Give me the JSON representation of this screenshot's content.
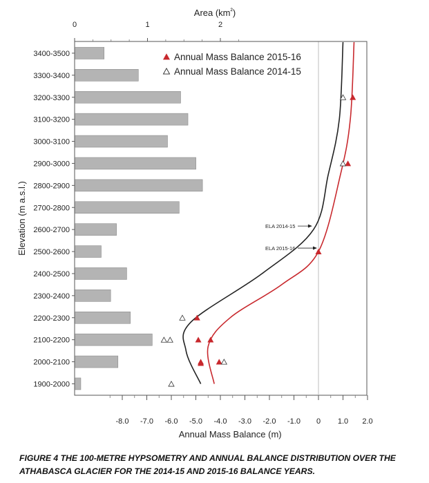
{
  "chart_data": {
    "type": "bar",
    "title": "",
    "bar_axis": {
      "title": "Area (km²)",
      "range": [
        0,
        2.5
      ],
      "ticks": [
        0,
        1,
        2
      ],
      "tick_labels": [
        "0",
        "1",
        "2"
      ]
    },
    "y_axis": {
      "title": "Elevation (m a.s.l.)"
    },
    "categories": [
      "3400-3500",
      "3300-3400",
      "3200-3300",
      "3100-3200",
      "3000-3100",
      "2900-3000",
      "2800-2900",
      "2700-2800",
      "2600-2700",
      "2500-2600",
      "2400-2500",
      "2300-2400",
      "2200-2300",
      "2100-2200",
      "2000-2100",
      "1900-2000"
    ],
    "area_values": [
      0.4,
      0.87,
      1.45,
      1.55,
      1.27,
      1.66,
      1.75,
      1.43,
      0.57,
      0.36,
      0.71,
      0.49,
      0.76,
      1.06,
      0.59,
      0.08
    ],
    "bar_color": "#b4b4b4",
    "balance_axis": {
      "title": "Annual Mass Balance (m)",
      "range": [
        -10,
        2
      ],
      "ticks": [
        -8,
        -7,
        -6,
        -5,
        -4,
        -3,
        -2,
        -1,
        0,
        1,
        2
      ],
      "tick_labels": [
        "-8.0",
        "-7.0",
        "-6.0",
        "-5.0",
        "-4.0",
        "-3.0",
        "-2.0",
        "-1.0",
        "0",
        "1.0",
        "2.0"
      ]
    },
    "legend": {
      "position": "top",
      "entries": [
        {
          "label": "Annual Mass Balance 2015-16",
          "marker": "filled-triangle",
          "color": "#c8282d"
        },
        {
          "label": "Annual Mass Balance 2014-15",
          "marker": "open-triangle",
          "color": "#222222"
        }
      ]
    },
    "series": [
      {
        "name": "Annual Mass Balance 2015-16",
        "color": "#c8282d",
        "points": [
          {
            "x": 1.4,
            "band": "3200-3300"
          },
          {
            "x": 1.2,
            "band": "2900-3000"
          },
          {
            "x": 0.0,
            "band": "2500-2600"
          },
          {
            "x": -4.95,
            "band": "2200-2300"
          },
          {
            "x": -4.9,
            "band": "2100-2200"
          },
          {
            "x": -4.4,
            "band": "2100-2200"
          },
          {
            "x": -4.8,
            "band": "2000-2100"
          },
          {
            "x": -4.8,
            "band": "2000-2100"
          },
          {
            "x": -4.05,
            "band": "2000-2100"
          }
        ],
        "curve": [
          [
            1.45,
            3500
          ],
          [
            1.3,
            3150
          ],
          [
            0.9,
            2900
          ],
          [
            0.0,
            2550
          ],
          [
            -1.5,
            2400
          ],
          [
            -3.6,
            2250
          ],
          [
            -4.5,
            2120
          ],
          [
            -4.25,
            1950
          ]
        ]
      },
      {
        "name": "Annual Mass Balance 2014-15",
        "color": "#222222",
        "points": [
          {
            "x": 1.0,
            "band": "3200-3300"
          },
          {
            "x": 1.0,
            "band": "2900-3000"
          },
          {
            "x": -5.55,
            "band": "2200-2300"
          },
          {
            "x": -6.3,
            "band": "2100-2200"
          },
          {
            "x": -6.05,
            "band": "2100-2200"
          },
          {
            "x": -3.85,
            "band": "2000-2100"
          },
          {
            "x": -6.0,
            "band": "1900-2000"
          }
        ],
        "curve": [
          [
            1.0,
            3500
          ],
          [
            0.85,
            3150
          ],
          [
            0.4,
            2900
          ],
          [
            -0.2,
            2650
          ],
          [
            -2.3,
            2450
          ],
          [
            -5.2,
            2230
          ],
          [
            -5.4,
            2100
          ],
          [
            -4.8,
            1950
          ]
        ]
      }
    ],
    "ela_labels": [
      {
        "text": "ELA 2014-15",
        "x": -0.2,
        "band": "2600-2700"
      },
      {
        "text": "ELA 2015-16",
        "x": 0.0,
        "band": "2500-2600"
      }
    ]
  },
  "caption": "FIGURE 4  THE 100-METRE HYPSOMETRY AND ANNUAL BALANCE DISTRIBUTION OVER THE ATHABASCA GLACIER FOR THE 2014-15 AND 2015-16 BALANCE YEARS."
}
